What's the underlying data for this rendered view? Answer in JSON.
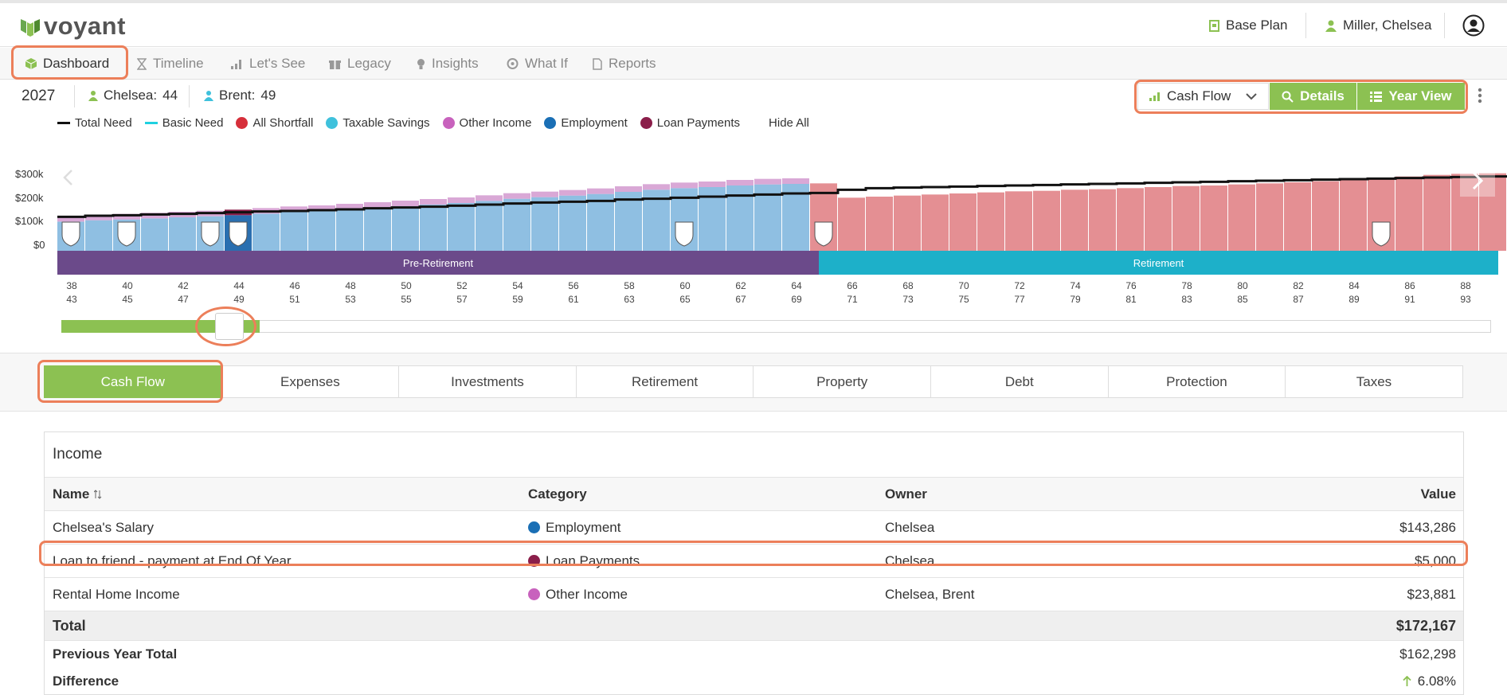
{
  "header": {
    "logo_text": "voyant",
    "plan_label": "Base Plan",
    "user_label": "Miller, Chelsea"
  },
  "nav": [
    {
      "label": "Dashboard",
      "icon": "cube-icon",
      "active": true
    },
    {
      "label": "Timeline",
      "icon": "hourglass-icon"
    },
    {
      "label": "Let's See",
      "icon": "bar-chart-icon"
    },
    {
      "label": "Legacy",
      "icon": "gift-icon"
    },
    {
      "label": "Insights",
      "icon": "lightbulb-icon"
    },
    {
      "label": "What If",
      "icon": "brain-icon"
    },
    {
      "label": "Reports",
      "icon": "document-icon"
    }
  ],
  "info": {
    "year": "2027",
    "person1_name": "Chelsea:",
    "person1_age": "44",
    "person2_name": "Brent:",
    "person2_age": "49"
  },
  "toolbar": {
    "view_select": "Cash Flow",
    "details_label": "Details",
    "yearview_label": "Year View"
  },
  "legend": [
    {
      "label": "Total Need",
      "type": "line",
      "color": "#111111"
    },
    {
      "label": "Basic Need",
      "type": "line",
      "color": "#1fd1e0"
    },
    {
      "label": "All Shortfall",
      "type": "dot",
      "color": "#d62f3a"
    },
    {
      "label": "Taxable Savings",
      "type": "dot",
      "color": "#3fc1dc"
    },
    {
      "label": "Other Income",
      "type": "dot",
      "color": "#c862bd"
    },
    {
      "label": "Employment",
      "type": "dot",
      "color": "#1a6fb5"
    },
    {
      "label": "Loan Payments",
      "type": "dot",
      "color": "#8b1e4a"
    }
  ],
  "legend_hide_all": "Hide All",
  "chart_data": {
    "type": "bar",
    "y_ticks": [
      "$300k",
      "$200k",
      "$100k",
      "$0"
    ],
    "ylim": [
      0,
      330
    ],
    "selected_year_index": 6,
    "values_k": [
      110,
      115,
      118,
      122,
      126,
      130,
      134,
      140,
      146,
      150,
      156,
      162,
      168,
      174,
      180,
      188,
      196,
      202,
      208,
      214,
      222,
      230,
      236,
      240,
      246,
      250,
      252,
      254,
      200,
      204,
      208,
      212,
      216,
      220,
      224,
      226,
      230,
      232,
      236,
      240,
      244,
      246,
      250,
      254,
      258,
      262,
      268,
      274,
      280,
      286,
      290,
      292
    ],
    "total_need_k": [
      128,
      132,
      134,
      137,
      139,
      142,
      145,
      148,
      150,
      153,
      156,
      160,
      163,
      166,
      170,
      174,
      178,
      182,
      185,
      188,
      193,
      196,
      200,
      204,
      208,
      212,
      216,
      218,
      230,
      236,
      238,
      240,
      242,
      244,
      246,
      248,
      250,
      252,
      254,
      256,
      258,
      260,
      262,
      264,
      266,
      268,
      270,
      272,
      274,
      276,
      278,
      280
    ],
    "pre_retirement_count": 27,
    "retirement_count": 25
  },
  "phases": {
    "pre": "Pre-Retirement",
    "post": "Retirement"
  },
  "ages_row1": [
    "38",
    "40",
    "42",
    "44",
    "46",
    "48",
    "50",
    "52",
    "54",
    "56",
    "58",
    "60",
    "62",
    "64",
    "66",
    "68",
    "70",
    "72",
    "74",
    "76",
    "78",
    "80",
    "82",
    "84",
    "86",
    "88"
  ],
  "ages_row2": [
    "43",
    "45",
    "47",
    "49",
    "51",
    "53",
    "55",
    "57",
    "59",
    "61",
    "63",
    "65",
    "67",
    "69",
    "71",
    "73",
    "75",
    "77",
    "79",
    "81",
    "83",
    "85",
    "87",
    "89",
    "91",
    "93"
  ],
  "subtabs": [
    "Cash Flow",
    "Expenses",
    "Investments",
    "Retirement",
    "Property",
    "Debt",
    "Protection",
    "Taxes"
  ],
  "income": {
    "title": "Income",
    "columns": {
      "name": "Name",
      "category": "Category",
      "owner": "Owner",
      "value": "Value"
    },
    "rows": [
      {
        "name": "Chelsea's Salary",
        "category": "Employment",
        "cat_color": "#1a6fb5",
        "owner": "Chelsea",
        "value": "$143,286"
      },
      {
        "name": "Loan to friend - payment at End Of Year",
        "category": "Loan Payments",
        "cat_color": "#8b1e4a",
        "owner": "Chelsea",
        "value": "$5,000"
      },
      {
        "name": "Rental Home Income",
        "category": "Other Income",
        "cat_color": "#c862bd",
        "owner": "Chelsea, Brent",
        "value": "$23,881"
      }
    ],
    "total_label": "Total",
    "total_value": "$172,167",
    "prev_label": "Previous Year Total",
    "prev_value": "$162,298",
    "diff_label": "Difference",
    "diff_value": "6.08%"
  }
}
